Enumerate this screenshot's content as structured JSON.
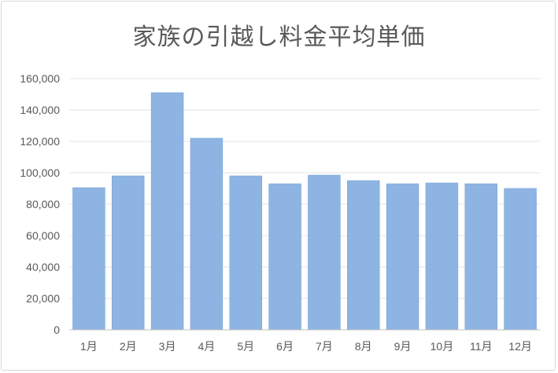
{
  "chart_data": {
    "type": "bar",
    "title": "家族の引越し料金平均単価",
    "categories": [
      "1月",
      "2月",
      "3月",
      "4月",
      "5月",
      "6月",
      "7月",
      "8月",
      "9月",
      "10月",
      "11月",
      "12月"
    ],
    "values": [
      90500,
      98000,
      151000,
      122000,
      98000,
      93000,
      98500,
      95000,
      93000,
      93500,
      93000,
      90000
    ],
    "xlabel": "",
    "ylabel": "",
    "ylim": [
      0,
      160000
    ],
    "yticks": [
      "0",
      "20,000",
      "40,000",
      "60,000",
      "80,000",
      "100,000",
      "120,000",
      "140,000",
      "160,000"
    ],
    "grid": true,
    "legend": "none",
    "colors": {
      "bar": "#8db4e2",
      "bar_edge": "#7aa6d9",
      "grid": "#e3e3e3",
      "axis": "#bfbfbf",
      "text": "#595959"
    }
  }
}
